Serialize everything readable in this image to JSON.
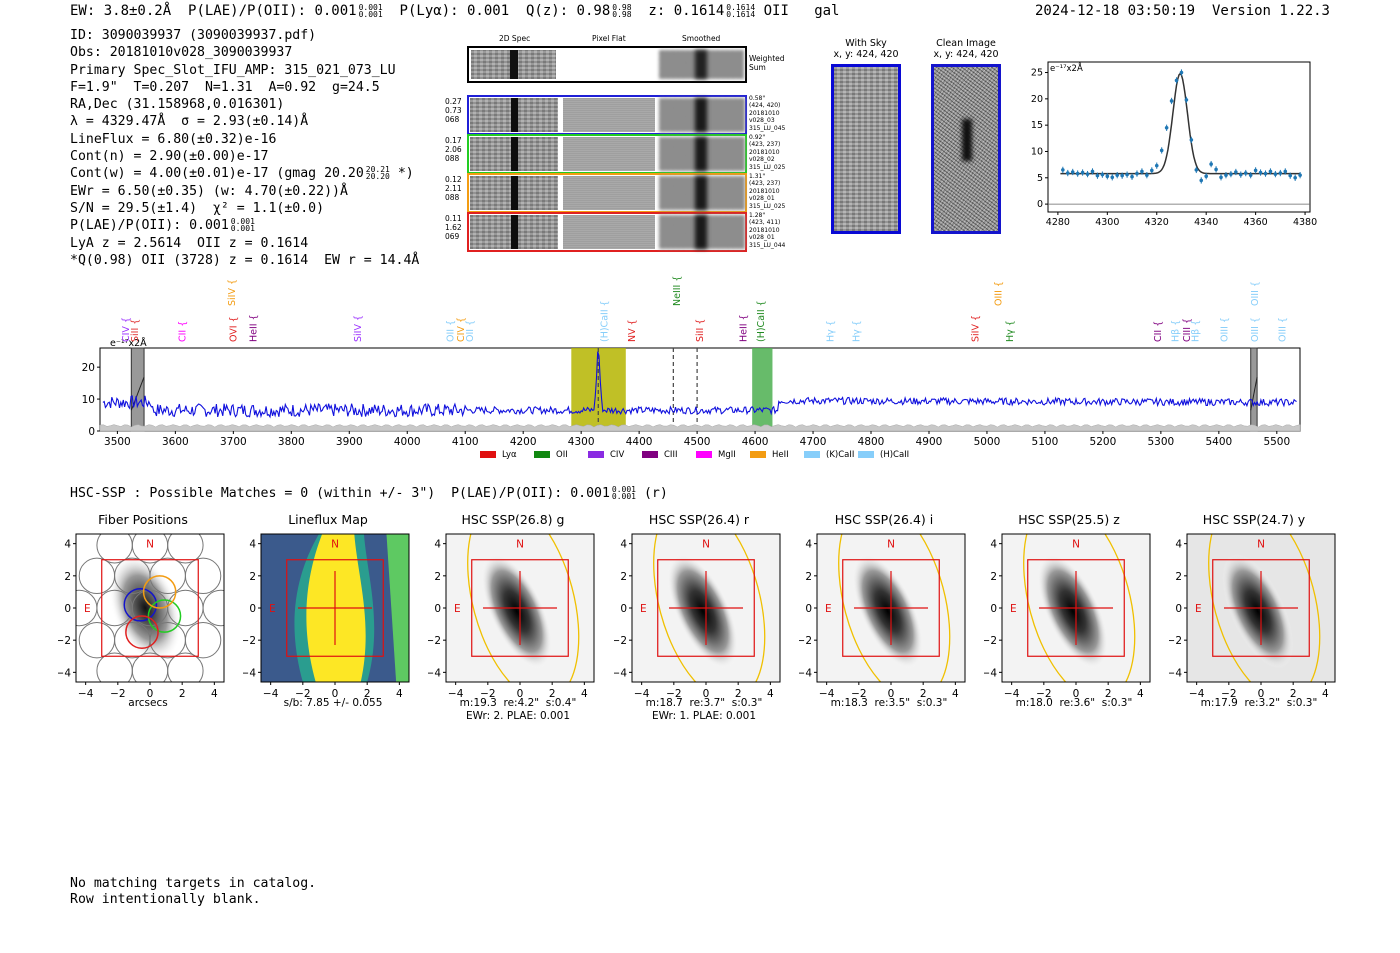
{
  "header": {
    "ew": "EW: 3.8±0.2Å",
    "plae": "P(LAE)/P(OII): 0.001",
    "plae_hi": "0.001",
    "plae_lo": "0.001",
    "plya": "P(Lyα): 0.001",
    "qz": "Q(z): 0.98",
    "qz_hi": "0.98",
    "qz_lo": "0.98",
    "z": "z: 0.1614",
    "z_hi": "0.1614",
    "z_lo": "0.1614",
    "line": "OII",
    "cls": "gal",
    "timestamp": "2024-12-18 03:50:19",
    "version": "Version 1.22.3"
  },
  "info": {
    "id": "ID: 3090039937 (3090039937.pdf)",
    "obs": "Obs: 20181010v028_3090039937",
    "primary": "Primary Spec_Slot_IFU_AMP: 315_021_073_LU",
    "fparams": "F=1.9\"  T=0.207  N=1.31  A=0.92  g=24.5",
    "radec": "RA,Dec (31.158968,0.016301)",
    "lambda": "λ = 4329.47Å  σ = 2.93(±0.14)Å",
    "lineflux": "LineFlux = 6.80(±0.32)e-16",
    "contn": "Cont(n) = 2.90(±0.00)e-17",
    "contw": "Cont(w) = 4.00(±0.01)e-17 (gmag 20.20",
    "contw_hi": "20.21",
    "contw_lo": "20.20",
    "contw_end": "*)",
    "ewr": "EWr = 6.50(±0.35) (w: 4.70(±0.22))Å",
    "sn": "S/N = 29.5(±1.4)  χ² = 1.1(±0.0)",
    "plae": "P(LAE)/P(OII): 0.001",
    "plae_hi": "0.001",
    "plae_lo": "0.001",
    "lya": "LyA z = 2.5614  OII z = 0.1614",
    "qline": "*Q(0.98) OII (3728) z = 0.1614  EW r = 14.4Å"
  },
  "spec2d": {
    "col_headers": [
      "2D Spec",
      "Pixel Flat",
      "Smoothed"
    ],
    "weighted_label": "Weighted Sum",
    "rows": [
      {
        "left": [
          "0.27",
          "0.73",
          "068"
        ],
        "right": [
          "0.58\"",
          "(424, 420)",
          "20181010",
          "v028_03",
          "315_LU_045"
        ],
        "color": "#1f1fd6"
      },
      {
        "left": [
          "0.17",
          "2.06",
          "088"
        ],
        "right": [
          "0.92\"",
          "(423, 237)",
          "20181010",
          "v028_02",
          "315_LU_025"
        ],
        "color": "#22cc22"
      },
      {
        "left": [
          "0.12",
          "2.11",
          "088"
        ],
        "right": [
          "1.31\"",
          "(423, 237)",
          "20181010",
          "v028_01",
          "315_LU_025"
        ],
        "color": "#f39c12"
      },
      {
        "left": [
          "0.11",
          "1.62",
          "069"
        ],
        "right": [
          "1.28\"",
          "(423, 411)",
          "20181010",
          "v028_01",
          "315_LU_044"
        ],
        "color": "#e02020"
      }
    ]
  },
  "cutouts": {
    "with_sky_title": "With Sky",
    "with_sky_coords": "x, y: 424, 420",
    "clean_title": "Clean Image",
    "clean_coords": "x, y: 424, 420"
  },
  "zoom_chart": {
    "type": "line",
    "unit_label": "e⁻¹⁷x2Å",
    "xticks": [
      4280,
      4300,
      4320,
      4340,
      4360,
      4380
    ],
    "yticks": [
      0,
      5,
      10,
      15,
      20,
      25
    ],
    "xlim": [
      4276,
      4382
    ],
    "ylim": [
      -1.5,
      27
    ],
    "points": [
      {
        "x": 4282,
        "y": 6.5
      },
      {
        "x": 4284,
        "y": 5.9
      },
      {
        "x": 4286,
        "y": 6.1
      },
      {
        "x": 4288,
        "y": 5.8
      },
      {
        "x": 4290,
        "y": 6.0
      },
      {
        "x": 4292,
        "y": 5.7
      },
      {
        "x": 4294,
        "y": 6.2
      },
      {
        "x": 4296,
        "y": 5.4
      },
      {
        "x": 4298,
        "y": 5.6
      },
      {
        "x": 4300,
        "y": 5.3
      },
      {
        "x": 4302,
        "y": 5.1
      },
      {
        "x": 4304,
        "y": 5.5
      },
      {
        "x": 4306,
        "y": 5.4
      },
      {
        "x": 4308,
        "y": 5.6
      },
      {
        "x": 4310,
        "y": 5.2
      },
      {
        "x": 4312,
        "y": 5.8
      },
      {
        "x": 4314,
        "y": 6.2
      },
      {
        "x": 4316,
        "y": 5.5
      },
      {
        "x": 4318,
        "y": 6.4
      },
      {
        "x": 4320,
        "y": 7.3
      },
      {
        "x": 4322,
        "y": 10.2
      },
      {
        "x": 4324,
        "y": 14.5
      },
      {
        "x": 4326,
        "y": 19.6
      },
      {
        "x": 4328,
        "y": 23.5
      },
      {
        "x": 4330,
        "y": 25.0
      },
      {
        "x": 4332,
        "y": 19.8
      },
      {
        "x": 4334,
        "y": 12.2
      },
      {
        "x": 4336,
        "y": 6.5
      },
      {
        "x": 4338,
        "y": 4.5
      },
      {
        "x": 4340,
        "y": 5.3
      },
      {
        "x": 4342,
        "y": 7.6
      },
      {
        "x": 4344,
        "y": 6.6
      },
      {
        "x": 4346,
        "y": 5.1
      },
      {
        "x": 4348,
        "y": 5.5
      },
      {
        "x": 4350,
        "y": 5.7
      },
      {
        "x": 4352,
        "y": 6.1
      },
      {
        "x": 4354,
        "y": 5.6
      },
      {
        "x": 4356,
        "y": 5.9
      },
      {
        "x": 4358,
        "y": 5.5
      },
      {
        "x": 4360,
        "y": 6.4
      },
      {
        "x": 4362,
        "y": 6.0
      },
      {
        "x": 4364,
        "y": 5.8
      },
      {
        "x": 4366,
        "y": 6.2
      },
      {
        "x": 4368,
        "y": 5.7
      },
      {
        "x": 4370,
        "y": 5.9
      },
      {
        "x": 4372,
        "y": 6.2
      },
      {
        "x": 4374,
        "y": 5.4
      },
      {
        "x": 4376,
        "y": 5.0
      },
      {
        "x": 4378,
        "y": 5.5
      }
    ],
    "fit": {
      "center": 4329.47,
      "sigma": 2.93,
      "amplitude": 19.0,
      "baseline": 5.8
    },
    "error": 0.6
  },
  "full_chart": {
    "type": "line",
    "unit_label": "e⁻¹⁷x2Å",
    "xticks": [
      3500,
      3600,
      3700,
      3800,
      3900,
      4000,
      4100,
      4200,
      4300,
      4400,
      4500,
      4600,
      4700,
      4800,
      4900,
      5000,
      5100,
      5200,
      5300,
      5400,
      5500
    ],
    "yticks": [
      0,
      10,
      20
    ],
    "xlim": [
      3470,
      5540
    ],
    "ylim": [
      0,
      26
    ],
    "highlight_bands": [
      {
        "from": 4283,
        "to": 4377,
        "color": "#b5b500"
      },
      {
        "from": 4595,
        "to": 4630,
        "color": "#4caf50"
      }
    ],
    "masked_bands": [
      {
        "from": 3524,
        "to": 3546
      },
      {
        "from": 5455,
        "to": 5466
      }
    ],
    "dashed_lines": [
      4329.5,
      4459,
      4500
    ],
    "line_labels": [
      {
        "text": "CIV",
        "x": 3515,
        "color": "#9b30ff",
        "row": 1
      },
      {
        "text": "SiII",
        "x": 3530,
        "color": "#e03030",
        "row": 1
      },
      {
        "text": "CII",
        "x": 3612,
        "color": "#ff00ff",
        "row": 1
      },
      {
        "text": "OVI",
        "x": 3700,
        "color": "#e02020",
        "row": 1
      },
      {
        "text": "SiIV",
        "x": 3698,
        "color": "#f39c12",
        "row": 0
      },
      {
        "text": "HeII",
        "x": 3735,
        "color": "#800080",
        "row": 1
      },
      {
        "text": "SiIV",
        "x": 3915,
        "color": "#9b30ff",
        "row": 1
      },
      {
        "text": "OII",
        "x": 4075,
        "color": "#87cefa",
        "row": 1
      },
      {
        "text": "CIV",
        "x": 4093,
        "color": "#f39c12",
        "row": 1
      },
      {
        "text": "OII",
        "x": 4108,
        "color": "#87cefa",
        "row": 1
      },
      {
        "text": "(H)CaII",
        "x": 4340,
        "color": "#87cefa",
        "row": 1
      },
      {
        "text": "NV",
        "x": 4388,
        "color": "#e02020",
        "row": 1
      },
      {
        "text": "NeIII",
        "x": 4465,
        "color": "#228b22",
        "row": 0
      },
      {
        "text": "SiII",
        "x": 4505,
        "color": "#e02020",
        "row": 1
      },
      {
        "text": "HeII",
        "x": 4580,
        "color": "#800080",
        "row": 1
      },
      {
        "text": "(H)CaII",
        "x": 4610,
        "color": "#228b22",
        "row": 1
      },
      {
        "text": "Hγ",
        "x": 4730,
        "color": "#87cefa",
        "row": 1
      },
      {
        "text": "Hγ",
        "x": 4775,
        "color": "#87cefa",
        "row": 1
      },
      {
        "text": "SiIV",
        "x": 4980,
        "color": "#e02020",
        "row": 1
      },
      {
        "text": "OIII",
        "x": 5020,
        "color": "#f39c12",
        "row": 0
      },
      {
        "text": "Hγ",
        "x": 5040,
        "color": "#228b22",
        "row": 1
      },
      {
        "text": "CII",
        "x": 5295,
        "color": "#800080",
        "row": 1
      },
      {
        "text": "Hβ",
        "x": 5325,
        "color": "#87cefa",
        "row": 1
      },
      {
        "text": "CIII",
        "x": 5345,
        "color": "#800080",
        "row": 1
      },
      {
        "text": "Hβ",
        "x": 5360,
        "color": "#87cefa",
        "row": 1
      },
      {
        "text": "OIII",
        "x": 5410,
        "color": "#87cefa",
        "row": 1
      },
      {
        "text": "OIII",
        "x": 5462,
        "color": "#87cefa",
        "row": 0
      },
      {
        "text": "OIII",
        "x": 5462,
        "color": "#87cefa",
        "row": 1
      },
      {
        "text": "OIII",
        "x": 5510,
        "color": "#87cefa",
        "row": 1
      }
    ],
    "legend": [
      {
        "label": "Lyα",
        "color": "#e01010"
      },
      {
        "label": "OII",
        "color": "#118811"
      },
      {
        "label": "CIV",
        "color": "#8a2be2"
      },
      {
        "label": "CIII",
        "color": "#800080"
      },
      {
        "label": "MgII",
        "color": "#ff00ff"
      },
      {
        "label": "HeII",
        "color": "#f39c12"
      },
      {
        "label": "(K)CaII",
        "color": "#87cefa"
      },
      {
        "label": "(H)CaII",
        "color": "#87cefa"
      }
    ]
  },
  "hsc": {
    "summary": "HSC-SSP : Possible Matches = 0 (within +/- 3\")  P(LAE)/P(OII): 0.001",
    "summary_hi": "0.001",
    "summary_lo": "0.001",
    "summary_end": "(r)",
    "ticks": [
      -4,
      -2,
      0,
      2,
      4
    ],
    "panels": [
      {
        "title": "Fiber Positions",
        "kind": "fibers",
        "xlabel": "arcsecs",
        "sub": ""
      },
      {
        "title": "Lineflux Map",
        "kind": "lineflux",
        "xlabel": "s/b: 7.85 +/- 0.055",
        "sub": ""
      },
      {
        "title": "HSC SSP(26.8) g",
        "kind": "image",
        "xlabel": "m:19.3  re:4.2\"  s:0.4\"",
        "sub": "EWr: 2. PLAE: 0.001"
      },
      {
        "title": "HSC SSP(26.4) r",
        "kind": "image",
        "xlabel": "m:18.7  re:3.7\"  s:0.3\"",
        "sub": "EWr: 1. PLAE: 0.001"
      },
      {
        "title": "HSC SSP(26.4) i",
        "kind": "image",
        "xlabel": "m:18.3  re:3.5\"  s:0.3\"",
        "sub": ""
      },
      {
        "title": "HSC SSP(25.5) z",
        "kind": "image",
        "xlabel": "m:18.0  re:3.6\"  s:0.3\"",
        "sub": ""
      },
      {
        "title": "HSC SSP(24.7) y",
        "kind": "image",
        "xlabel": "m:17.9  re:3.2\"  s:0.3\"",
        "sub": ""
      }
    ],
    "north_label": "N",
    "east_label": "E"
  },
  "footer": {
    "line1": "No matching targets in catalog.",
    "line2": "Row intentionally blank."
  },
  "chart_data": [
    {
      "type": "line",
      "title": "",
      "xlabel": "",
      "ylabel": "e⁻¹⁷x2Å",
      "x": [
        4282,
        4284,
        4286,
        4288,
        4290,
        4292,
        4294,
        4296,
        4298,
        4300,
        4302,
        4304,
        4306,
        4308,
        4310,
        4312,
        4314,
        4316,
        4318,
        4320,
        4322,
        4324,
        4326,
        4328,
        4330,
        4332,
        4334,
        4336,
        4338,
        4340,
        4342,
        4344,
        4346,
        4348,
        4350,
        4352,
        4354,
        4356,
        4358,
        4360,
        4362,
        4364,
        4366,
        4368,
        4370,
        4372,
        4374,
        4376,
        4378
      ],
      "y": [
        6.5,
        5.9,
        6.1,
        5.8,
        6.0,
        5.7,
        6.2,
        5.4,
        5.6,
        5.3,
        5.1,
        5.5,
        5.4,
        5.6,
        5.2,
        5.8,
        6.2,
        5.5,
        6.4,
        7.3,
        10.2,
        14.5,
        19.6,
        23.5,
        25.0,
        19.8,
        12.2,
        6.5,
        4.5,
        5.3,
        7.6,
        6.6,
        5.1,
        5.5,
        5.7,
        6.1,
        5.6,
        5.9,
        5.5,
        6.4,
        6.0,
        5.8,
        6.2,
        5.7,
        5.9,
        6.2,
        5.4,
        5.0,
        5.5
      ],
      "xlim": [
        4276,
        4382
      ],
      "ylim": [
        -1.5,
        27
      ]
    },
    {
      "type": "line",
      "title": "",
      "xlabel": "",
      "ylabel": "e⁻¹⁷x2Å",
      "series": [
        {
          "name": "spectrum",
          "continuum_blue": 6.5,
          "continuum_red": 9.5,
          "peak": {
            "x": 4329.5,
            "y": 25
          }
        }
      ],
      "xlim": [
        3470,
        5540
      ],
      "ylim": [
        0,
        26
      ]
    }
  ]
}
